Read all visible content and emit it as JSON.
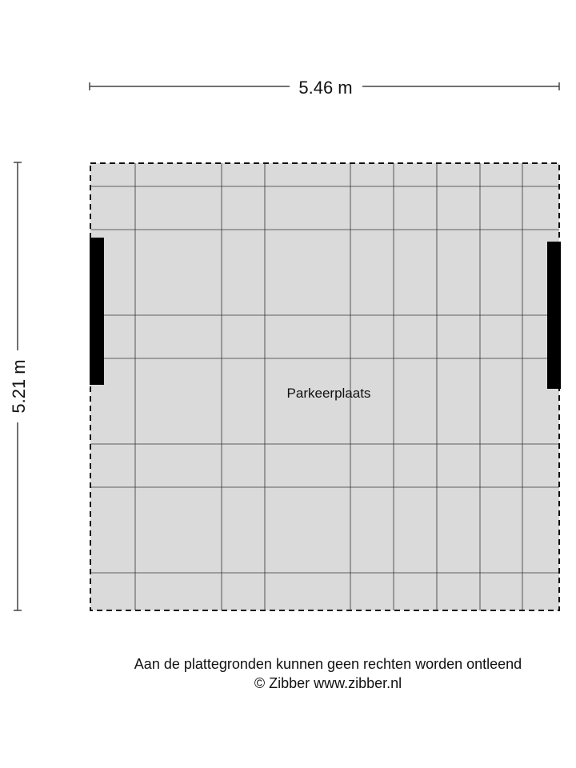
{
  "dimensions": {
    "width": "5.46 m",
    "height": "5.21 m"
  },
  "room": {
    "label": "Parkeerplaats",
    "fill": "#dadada"
  },
  "footer": {
    "disclaimer": "Aan de plattegronden kunnen geen rechten worden ontleend",
    "copyright": "© Zibber www.zibber.nl"
  }
}
